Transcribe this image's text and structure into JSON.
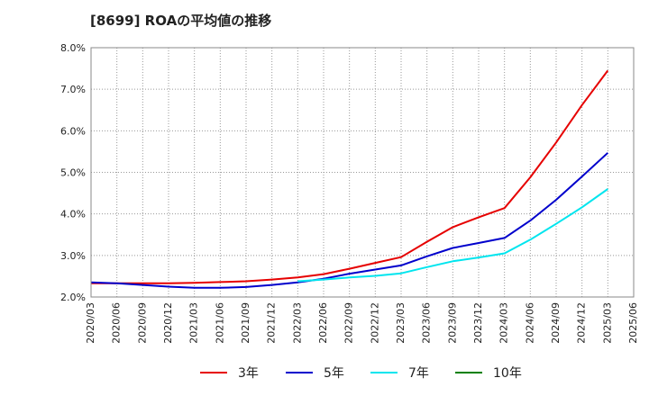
{
  "title": "[8699]  ROAの平均値の推移",
  "chart_data": {
    "type": "line",
    "title": "[8699]  ROAの平均値の推移",
    "xlabel": "",
    "ylabel": "",
    "ylim": [
      2.0,
      8.0
    ],
    "yticks": [
      "2.0%",
      "3.0%",
      "4.0%",
      "5.0%",
      "6.0%",
      "7.0%",
      "8.0%"
    ],
    "x": [
      "2020/03",
      "2020/06",
      "2020/09",
      "2020/12",
      "2021/03",
      "2021/06",
      "2021/09",
      "2021/12",
      "2022/03",
      "2022/06",
      "2022/09",
      "2022/12",
      "2023/03",
      "2023/06",
      "2023/09",
      "2023/12",
      "2024/03",
      "2024/06",
      "2024/09",
      "2024/12",
      "2025/03",
      "2025/06"
    ],
    "grid": true,
    "legend_position": "bottom",
    "series": [
      {
        "name": "3年",
        "color": "#e60000",
        "values": [
          2.33,
          2.33,
          2.33,
          2.33,
          2.34,
          2.36,
          2.38,
          2.42,
          2.47,
          2.55,
          2.68,
          2.82,
          2.96,
          3.33,
          3.68,
          3.92,
          4.14,
          4.88,
          5.72,
          6.62,
          7.45,
          null
        ]
      },
      {
        "name": "5年",
        "color": "#0000cc",
        "values": [
          2.35,
          2.33,
          2.29,
          2.25,
          2.22,
          2.22,
          2.24,
          2.29,
          2.35,
          2.44,
          2.56,
          2.66,
          2.76,
          2.98,
          3.18,
          3.3,
          3.42,
          3.84,
          4.34,
          4.9,
          5.47,
          null
        ]
      },
      {
        "name": "7年",
        "color": "#00e5ee",
        "values": [
          null,
          null,
          null,
          null,
          null,
          null,
          null,
          null,
          2.38,
          2.42,
          2.47,
          2.51,
          2.57,
          2.72,
          2.86,
          2.95,
          3.05,
          3.38,
          3.76,
          4.16,
          4.6,
          null
        ]
      },
      {
        "name": "10年",
        "color": "#008000",
        "values": [
          null,
          null,
          null,
          null,
          null,
          null,
          null,
          null,
          null,
          null,
          null,
          null,
          null,
          null,
          null,
          null,
          null,
          null,
          null,
          null,
          null,
          null
        ]
      }
    ]
  }
}
